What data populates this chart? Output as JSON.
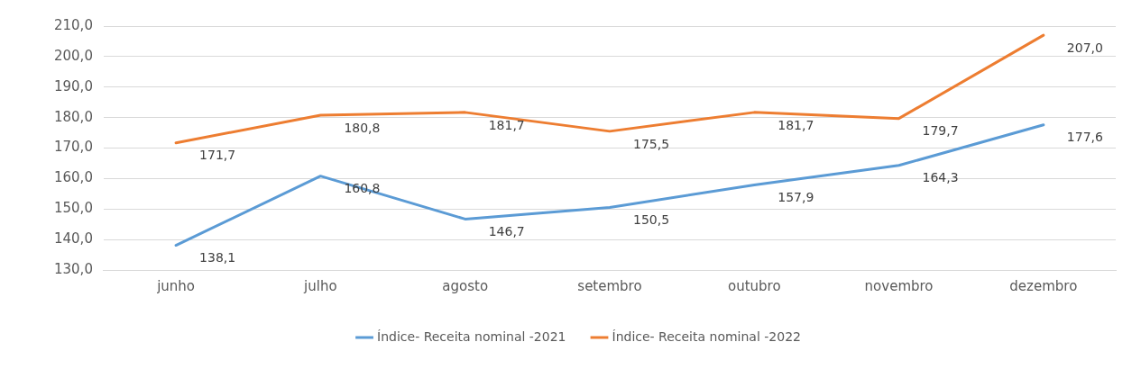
{
  "chart_data": {
    "type": "line",
    "categories": [
      "junho",
      "julho",
      "agosto",
      "setembro",
      "outubro",
      "novembro",
      "dezembro"
    ],
    "series": [
      {
        "name": "Índice- Receita nominal -2021",
        "color": "#5b9bd5",
        "values": [
          138.1,
          160.8,
          146.7,
          150.5,
          157.9,
          164.3,
          177.6
        ],
        "value_labels": [
          "138,1",
          "160,8",
          "146,7",
          "150,5",
          "157,9",
          "164,3",
          "177,6"
        ]
      },
      {
        "name": "Índice- Receita nominal -2022",
        "color": "#ed7d31",
        "values": [
          171.7,
          180.8,
          181.7,
          175.5,
          181.7,
          179.7,
          207.0
        ],
        "value_labels": [
          "171,7",
          "180,8",
          "181,7",
          "175,5",
          "181,7",
          "179,7",
          "207,0"
        ]
      }
    ],
    "ylim": [
      130,
      210
    ],
    "yticks": [
      {
        "value": 130,
        "label": "130,0"
      },
      {
        "value": 140,
        "label": "140,0"
      },
      {
        "value": 150,
        "label": "150,0"
      },
      {
        "value": 160,
        "label": "160,0"
      },
      {
        "value": 170,
        "label": "170,0"
      },
      {
        "value": 180,
        "label": "180,0"
      },
      {
        "value": 190,
        "label": "190,0"
      },
      {
        "value": 200,
        "label": "200,0"
      },
      {
        "value": 210,
        "label": "210,0"
      }
    ],
    "grid": "y",
    "legend": "bottom",
    "marker": "none",
    "line_style": "solid"
  }
}
